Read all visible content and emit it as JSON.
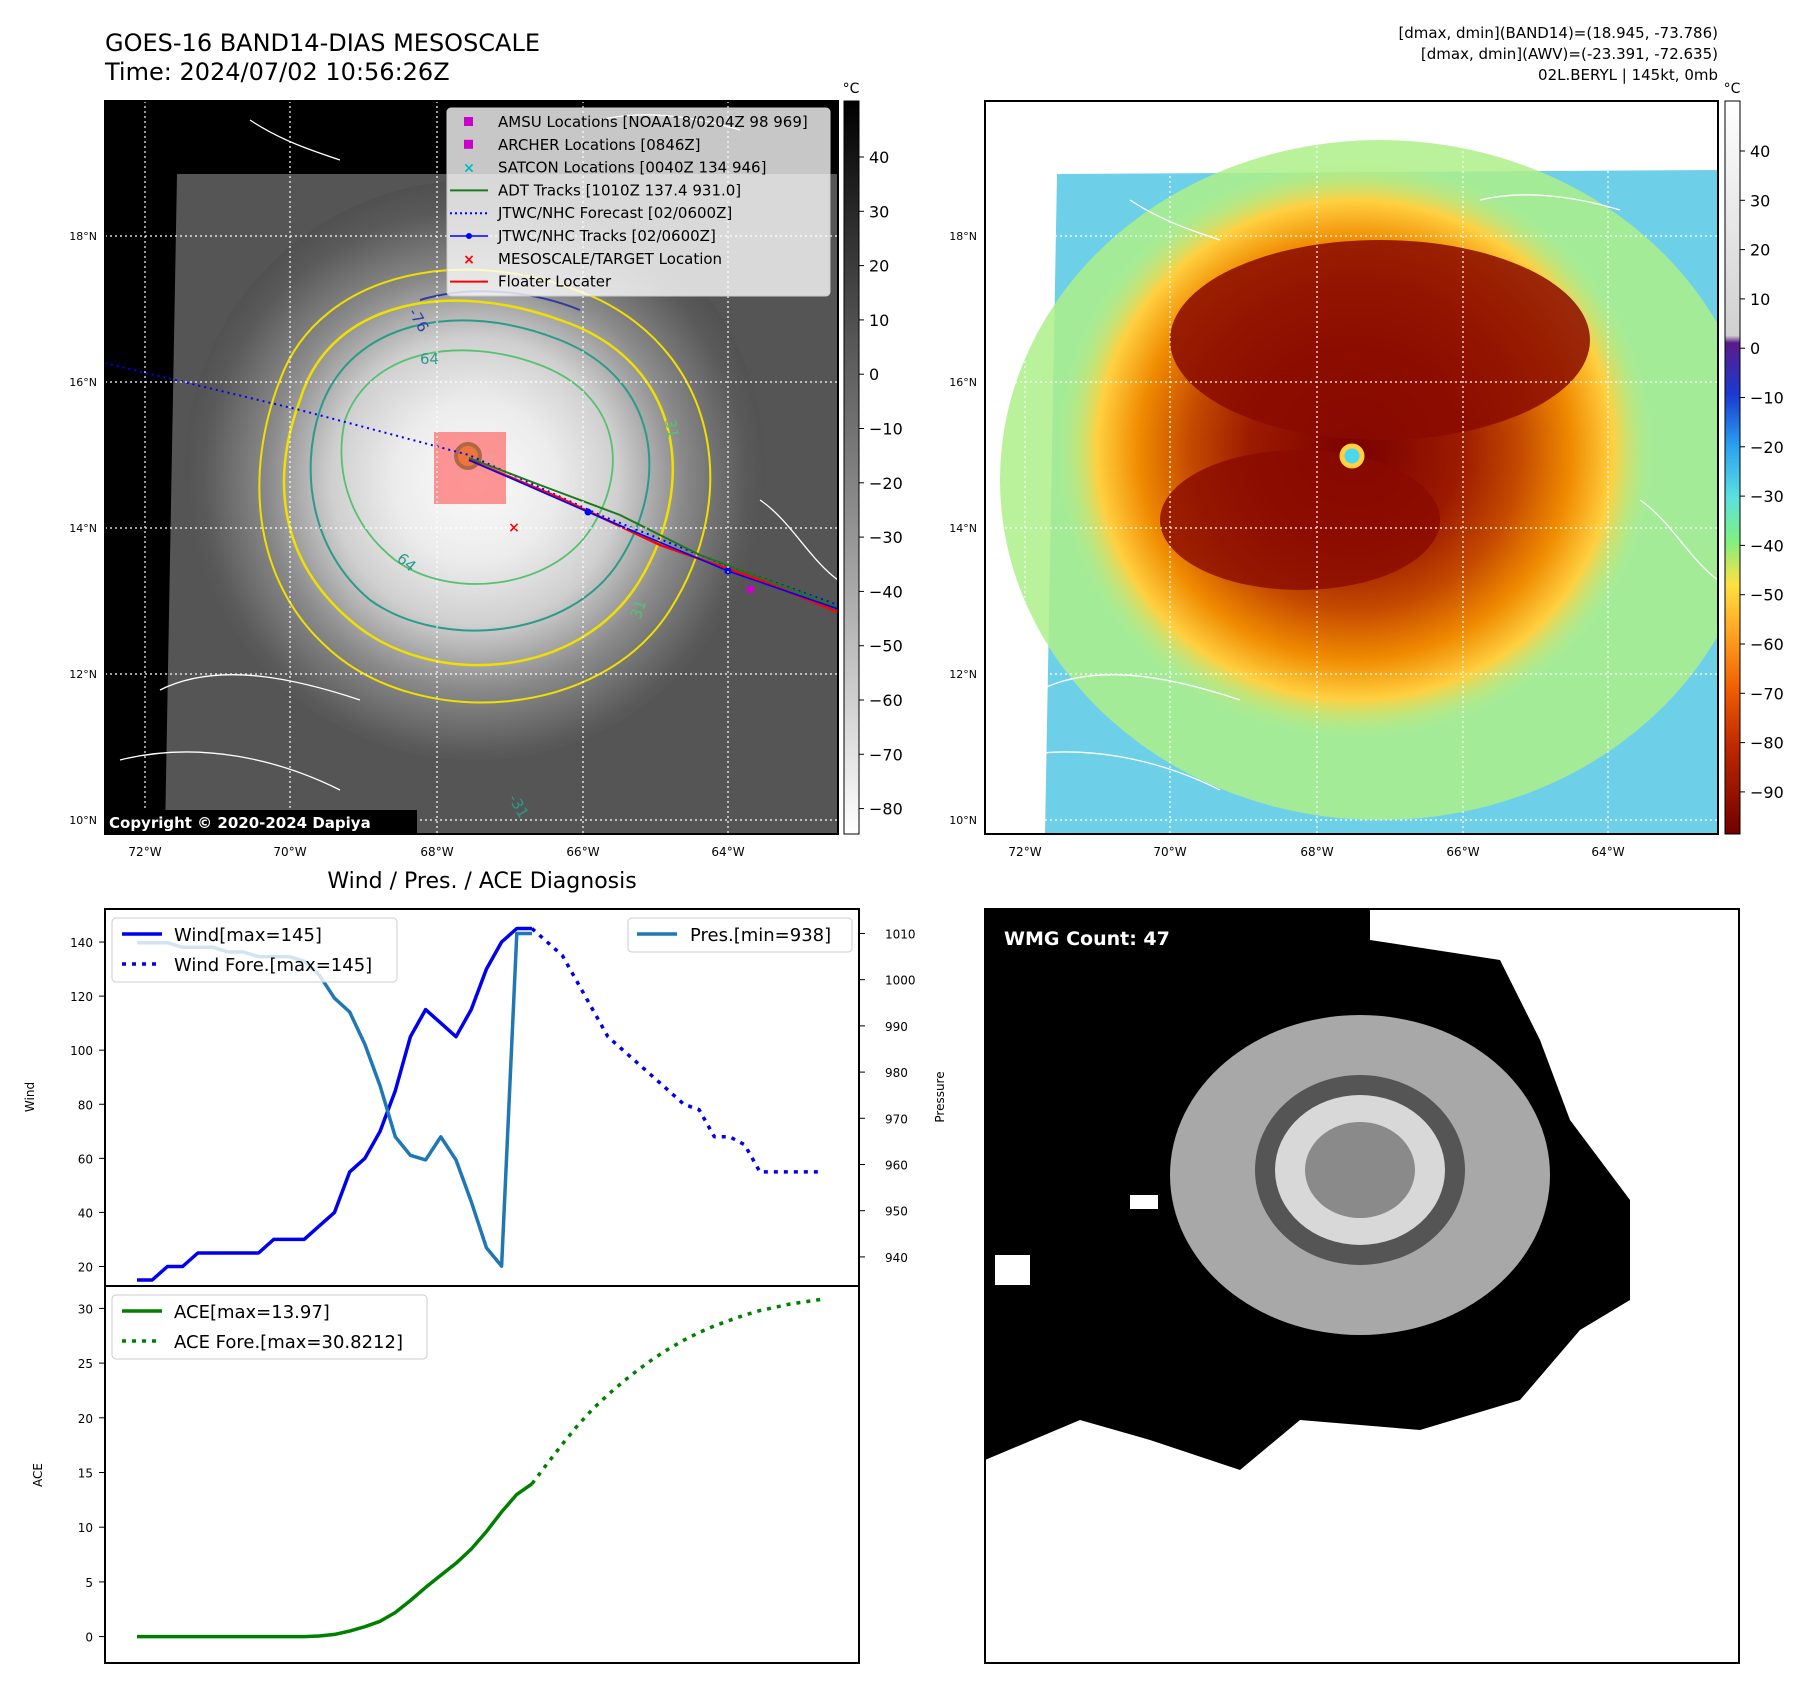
{
  "header": {
    "title_line1": "GOES-16 BAND14-DIAS MESOSCALE",
    "title_line2": "Time: 2024/07/02 10:56:26Z",
    "info_line1": "[dmax, dmin](BAND14)=(18.945, -73.786)",
    "info_line2": "[dmax, dmin](AWV)=(-23.391, -72.635)",
    "info_line3": "02L.BERYL | 145kt, 0mb"
  },
  "colors": {
    "wind": "#0000ee",
    "pressure": "#1f77b4",
    "ace": "#008000",
    "forecast_track": "#0000ff",
    "floater": "#ff0000",
    "adt": "#1a7a1a",
    "amsu": "#cc00cc",
    "satcon": "#00bcbc"
  },
  "ir_map": {
    "lat_labels": [
      "18°N",
      "16°N",
      "14°N",
      "12°N",
      "10°N"
    ],
    "lon_labels": [
      "72°W",
      "70°W",
      "68°W",
      "66°W",
      "64°W"
    ],
    "colorbar_unit": "°C",
    "colorbar_ticks": [
      "40",
      "30",
      "20",
      "10",
      "0",
      "−10",
      "−20",
      "−30",
      "−40",
      "−50",
      "−60",
      "−70",
      "−80"
    ],
    "legend": [
      {
        "label": "AMSU Locations [NOAA18/0204Z 98 969]",
        "marker": "square",
        "color": "#cc00cc"
      },
      {
        "label": "ARCHER Locations [0846Z]",
        "marker": "square",
        "color": "#cc00cc"
      },
      {
        "label": "SATCON Locations [0040Z 134 946]",
        "marker": "x",
        "color": "#00bcbc"
      },
      {
        "label": "ADT Tracks [1010Z 137.4 931.0]",
        "marker": "line",
        "color": "#1a7a1a"
      },
      {
        "label": "JTWC/NHC Forecast [02/0600Z]",
        "marker": "dotted",
        "color": "#0000ff"
      },
      {
        "label": "JTWC/NHC Tracks [02/0600Z]",
        "marker": "dotline",
        "color": "#0000ff"
      },
      {
        "label": "MESOSCALE/TARGET Location",
        "marker": "x",
        "color": "#ff0000"
      },
      {
        "label": "Floater Locater",
        "marker": "line",
        "color": "#ff0000"
      }
    ],
    "contour_labels": [
      "-76",
      "64",
      "64",
      "31",
      "31",
      "-31"
    ],
    "copyright": "Copyright © 2020-2024 Dapiya"
  },
  "color_map": {
    "lat_labels": [
      "18°N",
      "16°N",
      "14°N",
      "12°N",
      "10°N"
    ],
    "lon_labels": [
      "72°W",
      "70°W",
      "68°W",
      "66°W",
      "64°W"
    ],
    "colorbar_unit": "°C",
    "colorbar_ticks": [
      "40",
      "30",
      "20",
      "10",
      "0",
      "−10",
      "−20",
      "−30",
      "−40",
      "−50",
      "−60",
      "−70",
      "−80",
      "−90"
    ]
  },
  "wmg": {
    "label": "WMG Count: 47"
  },
  "chart_data": [
    {
      "type": "line",
      "title": "Wind / Pres. / ACE Diagnosis",
      "ylabel": "Wind",
      "y2label": "Pressure",
      "ylim": [
        15,
        150
      ],
      "y2lim": [
        935,
        1014
      ],
      "yticks": [
        "20",
        "40",
        "60",
        "80",
        "100",
        "120",
        "140"
      ],
      "y2ticks": [
        "940",
        "950",
        "960",
        "970",
        "980",
        "990",
        "1000",
        "1010"
      ],
      "legend_left": [
        "Wind[max=145]",
        "Wind Fore.[max=145]"
      ],
      "legend_right": [
        "Pres.[min=938]"
      ],
      "series": [
        {
          "name": "Wind[max=145]",
          "axis": "left",
          "style": "solid",
          "x": [
            0,
            1,
            2,
            3,
            4,
            5,
            6,
            7,
            8,
            9,
            10,
            11,
            12,
            13,
            14,
            15,
            16,
            17,
            18,
            19,
            20,
            21,
            22,
            23,
            24,
            25,
            26
          ],
          "values": [
            15,
            15,
            20,
            20,
            25,
            25,
            25,
            25,
            25,
            30,
            30,
            30,
            35,
            40,
            55,
            60,
            70,
            85,
            105,
            115,
            110,
            105,
            115,
            130,
            140,
            145,
            145
          ]
        },
        {
          "name": "Wind Fore.[max=145]",
          "axis": "left",
          "style": "dotted",
          "x": [
            26,
            27,
            28,
            29,
            30,
            31,
            32,
            33,
            34,
            35,
            36,
            37,
            38,
            39,
            40,
            41,
            42,
            43,
            44,
            45
          ],
          "values": [
            145,
            140,
            135,
            125,
            115,
            105,
            100,
            95,
            90,
            85,
            80,
            78,
            68,
            68,
            65,
            55,
            55,
            55,
            55,
            55
          ]
        },
        {
          "name": "Pres.[min=938]",
          "axis": "right",
          "style": "solid",
          "x": [
            0,
            1,
            2,
            3,
            4,
            5,
            6,
            7,
            8,
            9,
            10,
            11,
            12,
            13,
            14,
            15,
            16,
            17,
            18,
            19,
            20,
            21,
            22,
            23,
            24,
            25,
            26
          ],
          "values": [
            1008,
            1008,
            1008,
            1007,
            1007,
            1007,
            1006,
            1006,
            1005,
            1005,
            1005,
            1004,
            1001,
            996,
            993,
            986,
            977,
            966,
            962,
            961,
            966,
            961,
            952,
            942,
            938,
            1010,
            1010
          ]
        }
      ]
    },
    {
      "type": "line",
      "ylabel": "ACE",
      "ylim": [
        -1.5,
        31.5
      ],
      "yticks": [
        "0",
        "5",
        "10",
        "15",
        "20",
        "25",
        "30"
      ],
      "legend": [
        "ACE[max=13.97]",
        "ACE Fore.[max=30.8212]"
      ],
      "series": [
        {
          "name": "ACE[max=13.97]",
          "style": "solid",
          "x": [
            0,
            1,
            2,
            3,
            4,
            5,
            6,
            7,
            8,
            9,
            10,
            11,
            12,
            13,
            14,
            15,
            16,
            17,
            18,
            19,
            20,
            21,
            22,
            23,
            24,
            25,
            26
          ],
          "values": [
            0,
            0,
            0,
            0,
            0,
            0,
            0,
            0,
            0,
            0,
            0,
            0,
            0.05,
            0.2,
            0.5,
            0.9,
            1.4,
            2.2,
            3.3,
            4.5,
            5.6,
            6.7,
            8.0,
            9.6,
            11.4,
            13.0,
            13.97
          ]
        },
        {
          "name": "ACE Fore.[max=30.8212]",
          "style": "dotted",
          "x": [
            26,
            27,
            28,
            29,
            30,
            31,
            32,
            33,
            34,
            35,
            36,
            37,
            38,
            39,
            40,
            41,
            42,
            43,
            44,
            45
          ],
          "values": [
            13.97,
            15.8,
            17.6,
            19.3,
            20.8,
            22.1,
            23.3,
            24.4,
            25.4,
            26.3,
            27.1,
            27.8,
            28.4,
            28.9,
            29.4,
            29.8,
            30.1,
            30.4,
            30.6,
            30.82
          ]
        }
      ]
    }
  ]
}
